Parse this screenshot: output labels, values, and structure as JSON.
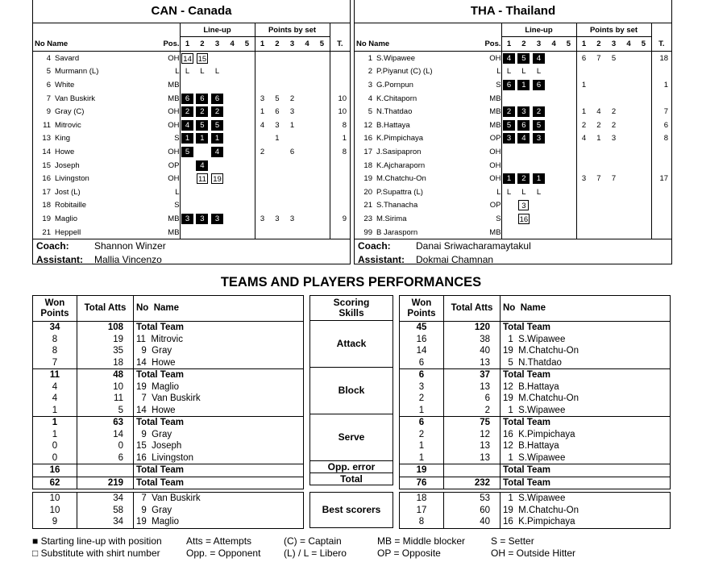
{
  "teams": [
    {
      "title": "CAN - Canada",
      "lineup_label": "Line-up",
      "points_label": "Points by set",
      "col_no_name": "No Name",
      "col_pos": "Pos.",
      "set_nums": [
        "1",
        "2",
        "3",
        "4",
        "5"
      ],
      "col_total": "T.",
      "players": [
        {
          "no": "4",
          "name": "Savard",
          "pos": "OH",
          "lineup": [
            [
              "b",
              "14"
            ],
            [
              "b",
              "15"
            ],
            null,
            null,
            null
          ],
          "points": [
            "",
            "",
            "",
            "",
            ""
          ],
          "total": ""
        },
        {
          "no": "5",
          "name": "Murmann (L)",
          "pos": "L",
          "lineup": [
            [
              "l",
              "L"
            ],
            [
              "l",
              "L"
            ],
            [
              "l",
              "L"
            ],
            null,
            null
          ],
          "points": [
            "",
            "",
            "",
            "",
            ""
          ],
          "total": ""
        },
        {
          "no": "6",
          "name": "White",
          "pos": "MB",
          "lineup": [
            null,
            null,
            null,
            null,
            null
          ],
          "points": [
            "",
            "",
            "",
            "",
            ""
          ],
          "total": ""
        },
        {
          "no": "7",
          "name": "Van Buskirk",
          "pos": "MB",
          "lineup": [
            [
              "s",
              "6"
            ],
            [
              "s",
              "6"
            ],
            [
              "s",
              "6"
            ],
            null,
            null
          ],
          "points": [
            "3",
            "5",
            "2",
            "",
            ""
          ],
          "total": "10"
        },
        {
          "no": "9",
          "name": "Gray (C)",
          "pos": "OH",
          "lineup": [
            [
              "s",
              "2"
            ],
            [
              "s",
              "2"
            ],
            [
              "s",
              "2"
            ],
            null,
            null
          ],
          "points": [
            "1",
            "6",
            "3",
            "",
            ""
          ],
          "total": "10"
        },
        {
          "no": "11",
          "name": "Mitrovic",
          "pos": "OH",
          "lineup": [
            [
              "s",
              "4"
            ],
            [
              "s",
              "5"
            ],
            [
              "s",
              "5"
            ],
            null,
            null
          ],
          "points": [
            "4",
            "3",
            "1",
            "",
            ""
          ],
          "total": "8"
        },
        {
          "no": "13",
          "name": "King",
          "pos": "S",
          "lineup": [
            [
              "s",
              "1"
            ],
            [
              "s",
              "1"
            ],
            [
              "s",
              "1"
            ],
            null,
            null
          ],
          "points": [
            "",
            "1",
            "",
            "",
            ""
          ],
          "total": "1"
        },
        {
          "no": "14",
          "name": "Howe",
          "pos": "OH",
          "lineup": [
            [
              "s",
              "5"
            ],
            null,
            [
              "s",
              "4"
            ],
            null,
            null
          ],
          "points": [
            "2",
            "",
            "6",
            "",
            ""
          ],
          "total": "8"
        },
        {
          "no": "15",
          "name": "Joseph",
          "pos": "OP",
          "lineup": [
            null,
            [
              "s",
              "4"
            ],
            null,
            null,
            null
          ],
          "points": [
            "",
            "",
            "",
            "",
            ""
          ],
          "total": ""
        },
        {
          "no": "16",
          "name": "Livingston",
          "pos": "OH",
          "lineup": [
            null,
            [
              "b",
              "11"
            ],
            [
              "b",
              "19"
            ],
            null,
            null
          ],
          "points": [
            "",
            "",
            "",
            "",
            ""
          ],
          "total": ""
        },
        {
          "no": "17",
          "name": "Jost (L)",
          "pos": "L",
          "lineup": [
            null,
            null,
            null,
            null,
            null
          ],
          "points": [
            "",
            "",
            "",
            "",
            ""
          ],
          "total": ""
        },
        {
          "no": "18",
          "name": "Robitaille",
          "pos": "S",
          "lineup": [
            null,
            null,
            null,
            null,
            null
          ],
          "points": [
            "",
            "",
            "",
            "",
            ""
          ],
          "total": ""
        },
        {
          "no": "19",
          "name": "Maglio",
          "pos": "MB",
          "lineup": [
            [
              "s",
              "3"
            ],
            [
              "s",
              "3"
            ],
            [
              "s",
              "3"
            ],
            null,
            null
          ],
          "points": [
            "3",
            "3",
            "3",
            "",
            ""
          ],
          "total": "9"
        },
        {
          "no": "21",
          "name": "Heppell",
          "pos": "MB",
          "lineup": [
            null,
            null,
            null,
            null,
            null
          ],
          "points": [
            "",
            "",
            "",
            "",
            ""
          ],
          "total": ""
        }
      ],
      "coach_label": "Coach:",
      "coach": "Shannon Winzer",
      "assistant_label": "Assistant:",
      "assistant": "Mallia Vincenzo"
    },
    {
      "title": "THA - Thailand",
      "lineup_label": "Line-up",
      "points_label": "Points by set",
      "col_no_name": "No Name",
      "col_pos": "Pos.",
      "set_nums": [
        "1",
        "2",
        "3",
        "4",
        "5"
      ],
      "col_total": "T.",
      "players": [
        {
          "no": "1",
          "name": "S.Wipawee",
          "pos": "OH",
          "lineup": [
            [
              "s",
              "4"
            ],
            [
              "s",
              "5"
            ],
            [
              "s",
              "4"
            ],
            null,
            null
          ],
          "points": [
            "6",
            "7",
            "5",
            "",
            ""
          ],
          "total": "18"
        },
        {
          "no": "2",
          "name": "P.Piyanut (C) (L)",
          "pos": "L",
          "lineup": [
            [
              "l",
              "L"
            ],
            [
              "l",
              "L"
            ],
            [
              "l",
              "L"
            ],
            null,
            null
          ],
          "points": [
            "",
            "",
            "",
            "",
            ""
          ],
          "total": ""
        },
        {
          "no": "3",
          "name": "G.Pornpun",
          "pos": "S",
          "lineup": [
            [
              "s",
              "6"
            ],
            [
              "s",
              "1"
            ],
            [
              "s",
              "6"
            ],
            null,
            null
          ],
          "points": [
            "1",
            "",
            "",
            "",
            ""
          ],
          "total": "1"
        },
        {
          "no": "4",
          "name": "K.Chitaporn",
          "pos": "MB",
          "lineup": [
            null,
            null,
            null,
            null,
            null
          ],
          "points": [
            "",
            "",
            "",
            "",
            ""
          ],
          "total": ""
        },
        {
          "no": "5",
          "name": "N.Thatdao",
          "pos": "MB",
          "lineup": [
            [
              "s",
              "2"
            ],
            [
              "s",
              "3"
            ],
            [
              "s",
              "2"
            ],
            null,
            null
          ],
          "points": [
            "1",
            "4",
            "2",
            "",
            ""
          ],
          "total": "7"
        },
        {
          "no": "12",
          "name": "B.Hattaya",
          "pos": "MB",
          "lineup": [
            [
              "s",
              "5"
            ],
            [
              "s",
              "6"
            ],
            [
              "s",
              "5"
            ],
            null,
            null
          ],
          "points": [
            "2",
            "2",
            "2",
            "",
            ""
          ],
          "total": "6"
        },
        {
          "no": "16",
          "name": "K.Pimpichaya",
          "pos": "OP",
          "lineup": [
            [
              "s",
              "3"
            ],
            [
              "s",
              "4"
            ],
            [
              "s",
              "3"
            ],
            null,
            null
          ],
          "points": [
            "4",
            "1",
            "3",
            "",
            ""
          ],
          "total": "8"
        },
        {
          "no": "17",
          "name": "J.Sasipapron",
          "pos": "OH",
          "lineup": [
            null,
            null,
            null,
            null,
            null
          ],
          "points": [
            "",
            "",
            "",
            "",
            ""
          ],
          "total": ""
        },
        {
          "no": "18",
          "name": "K.Ajcharaporn",
          "pos": "OH",
          "lineup": [
            null,
            null,
            null,
            null,
            null
          ],
          "points": [
            "",
            "",
            "",
            "",
            ""
          ],
          "total": ""
        },
        {
          "no": "19",
          "name": "M.Chatchu-On",
          "pos": "OH",
          "lineup": [
            [
              "s",
              "1"
            ],
            [
              "s",
              "2"
            ],
            [
              "s",
              "1"
            ],
            null,
            null
          ],
          "points": [
            "3",
            "7",
            "7",
            "",
            ""
          ],
          "total": "17"
        },
        {
          "no": "20",
          "name": "P.Supattra (L)",
          "pos": "L",
          "lineup": [
            [
              "l",
              "L"
            ],
            [
              "l",
              "L"
            ],
            [
              "l",
              "L"
            ],
            null,
            null
          ],
          "points": [
            "",
            "",
            "",
            "",
            ""
          ],
          "total": ""
        },
        {
          "no": "21",
          "name": "S.Thanacha",
          "pos": "OP",
          "lineup": [
            null,
            [
              "b",
              "3"
            ],
            null,
            null,
            null
          ],
          "points": [
            "",
            "",
            "",
            "",
            ""
          ],
          "total": ""
        },
        {
          "no": "23",
          "name": "M.Sirima",
          "pos": "S",
          "lineup": [
            null,
            [
              "b",
              "16"
            ],
            null,
            null,
            null
          ],
          "points": [
            "",
            "",
            "",
            "",
            ""
          ],
          "total": ""
        },
        {
          "no": "99",
          "name": "B Jarasporn",
          "pos": "MB",
          "lineup": [
            null,
            null,
            null,
            null,
            null
          ],
          "points": [
            "",
            "",
            "",
            "",
            ""
          ],
          "total": ""
        }
      ],
      "coach_label": "Coach:",
      "coach": "Danai Sriwacharamaytakul",
      "assistant_label": "Assistant:",
      "assistant": "Dokmai Chamnan"
    }
  ],
  "performance": {
    "title": "TEAMS AND PLAYERS PERFORMANCES",
    "headers": {
      "won": "Won Points",
      "atts": "Total Atts",
      "name": "No  Name",
      "skills": "Scoring Skills"
    },
    "skills": [
      "Attack",
      "Block",
      "Serve",
      "Opp. error",
      "Total"
    ],
    "best_label": "Best scorers",
    "sides": [
      {
        "groups": [
          [
            [
              "34",
              "108",
              "Total Team"
            ],
            [
              "8",
              "19",
              "11  Mitrovic"
            ],
            [
              "8",
              "35",
              "  9  Gray"
            ],
            [
              "7",
              "18",
              "14  Howe"
            ]
          ],
          [
            [
              "11",
              "48",
              "Total Team"
            ],
            [
              "4",
              "10",
              "19  Maglio"
            ],
            [
              "4",
              "11",
              "  7  Van Buskirk"
            ],
            [
              "1",
              "5",
              "14  Howe"
            ]
          ],
          [
            [
              "1",
              "63",
              "Total Team"
            ],
            [
              "1",
              "14",
              "  9  Gray"
            ],
            [
              "0",
              "0",
              "15  Joseph"
            ],
            [
              "0",
              "6",
              "16  Livingston"
            ]
          ],
          [
            [
              "16",
              "",
              "Total Team"
            ]
          ],
          [
            [
              "62",
              "219",
              "Total Team"
            ]
          ]
        ],
        "best": [
          [
            "10",
            "34",
            "  7  Van Buskirk"
          ],
          [
            "10",
            "58",
            "  9  Gray"
          ],
          [
            "9",
            "34",
            "19  Maglio"
          ]
        ]
      },
      {
        "groups": [
          [
            [
              "45",
              "120",
              "Total Team"
            ],
            [
              "16",
              "38",
              "  1  S.Wipawee"
            ],
            [
              "14",
              "40",
              "19  M.Chatchu-On"
            ],
            [
              "6",
              "13",
              "  5  N.Thatdao"
            ]
          ],
          [
            [
              "6",
              "37",
              "Total Team"
            ],
            [
              "3",
              "13",
              "12  B.Hattaya"
            ],
            [
              "2",
              "6",
              "19  M.Chatchu-On"
            ],
            [
              "1",
              "2",
              "  1  S.Wipawee"
            ]
          ],
          [
            [
              "6",
              "75",
              "Total Team"
            ],
            [
              "2",
              "12",
              "16  K.Pimpichaya"
            ],
            [
              "1",
              "13",
              "12  B.Hattaya"
            ],
            [
              "1",
              "13",
              "  1  S.Wipawee"
            ]
          ],
          [
            [
              "19",
              "",
              "Total Team"
            ]
          ],
          [
            [
              "76",
              "232",
              "Total Team"
            ]
          ]
        ],
        "best": [
          [
            "18",
            "53",
            "  1  S.Wipawee"
          ],
          [
            "17",
            "60",
            "19  M.Chatchu-On"
          ],
          [
            "8",
            "40",
            "16  K.Pimpichaya"
          ]
        ]
      }
    ]
  },
  "legend": [
    [
      "■ Starting line-up with position",
      "Atts = Attempts",
      "(C) = Captain",
      "MB = Middle blocker",
      "S = Setter"
    ],
    [
      "□ Substitute with shirt number",
      "Opp. = Opponent",
      "(L) / L = Libero",
      "OP = Opposite",
      "OH = Outside Hitter"
    ]
  ]
}
